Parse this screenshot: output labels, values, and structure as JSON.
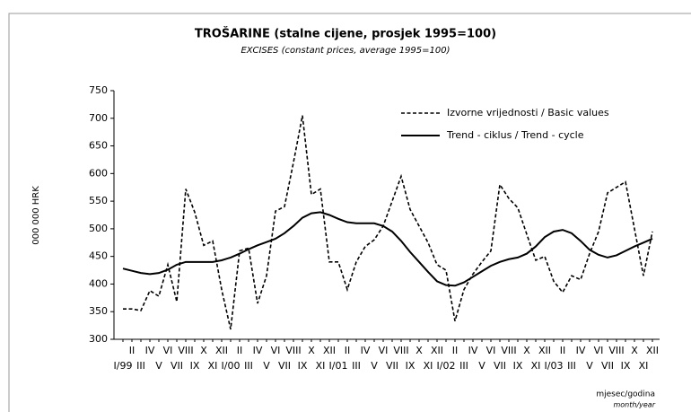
{
  "chart_data": {
    "type": "line",
    "title": "TROŠARINE (stalne cijene, prosjek 1995=100)",
    "subtitle": "EXCISES (constant prices, average 1995=100)",
    "y_label": "000 000 HRK",
    "x_label": "mjesec/godina",
    "x_label_en": "month/year",
    "categories": [
      "I/99",
      "II",
      "III",
      "IV",
      "V",
      "VI",
      "VII",
      "VIII",
      "IX",
      "X",
      "XI",
      "XII",
      "I/00",
      "II",
      "III",
      "IV",
      "V",
      "VI",
      "VII",
      "VIII",
      "IX",
      "X",
      "XI",
      "XII",
      "I/01",
      "II",
      "III",
      "IV",
      "V",
      "VI",
      "VII",
      "VIII",
      "IX",
      "X",
      "XI",
      "XII",
      "I/02",
      "II",
      "III",
      "IV",
      "V",
      "VI",
      "VII",
      "VIII",
      "IX",
      "X",
      "XI",
      "XII",
      "I/03",
      "II",
      "III",
      "IV",
      "V",
      "VI",
      "VII",
      "VIII",
      "IX",
      "X",
      "XI",
      "XII"
    ],
    "series": [
      {
        "name": "Izvorne vrijednosti / Basic values",
        "color": "#000000",
        "dash": true,
        "values": [
          355,
          355,
          352,
          388,
          378,
          435,
          368,
          572,
          530,
          470,
          478,
          390,
          318,
          460,
          465,
          365,
          415,
          532,
          540,
          620,
          705,
          562,
          572,
          440,
          440,
          390,
          440,
          468,
          480,
          505,
          550,
          595,
          535,
          505,
          475,
          435,
          425,
          333,
          390,
          418,
          440,
          460,
          580,
          555,
          538,
          490,
          443,
          450,
          405,
          385,
          415,
          408,
          455,
          495,
          565,
          575,
          585,
          500,
          415,
          495
        ]
      },
      {
        "name": "Trend - ciklus / Trend - cycle",
        "color": "#000000",
        "dash": false,
        "values": [
          428,
          424,
          420,
          418,
          420,
          426,
          435,
          440,
          440,
          440,
          440,
          443,
          448,
          455,
          463,
          470,
          476,
          482,
          492,
          505,
          520,
          528,
          530,
          525,
          518,
          512,
          510,
          510,
          510,
          505,
          495,
          478,
          458,
          440,
          422,
          405,
          398,
          397,
          403,
          413,
          423,
          433,
          440,
          445,
          448,
          455,
          468,
          485,
          495,
          498,
          492,
          478,
          462,
          453,
          448,
          452,
          460,
          468,
          475,
          482
        ]
      }
    ],
    "ylim": [
      300,
      750
    ],
    "yticks": [
      300,
      350,
      400,
      450,
      500,
      550,
      600,
      650,
      700,
      750
    ],
    "grid": false
  }
}
